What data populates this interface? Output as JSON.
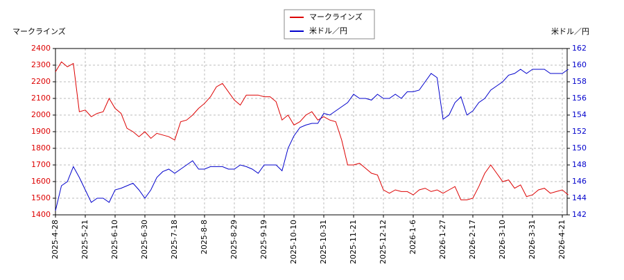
{
  "chart_data": {
    "type": "line",
    "ylabel": "マークラインズ",
    "y2label": "米ドル／円",
    "categories": [
      "2025-4-28",
      null,
      null,
      null,
      null,
      "2025-5-21",
      null,
      null,
      null,
      null,
      "2025-6-10",
      null,
      null,
      null,
      null,
      "2025-6-30",
      null,
      null,
      null,
      null,
      "2025-7-18",
      null,
      null,
      null,
      null,
      "2025-8-8",
      null,
      null,
      null,
      null,
      "2025-8-29",
      null,
      null,
      null,
      null,
      "2025-9-19",
      null,
      null,
      null,
      null,
      "2025-10-10",
      null,
      null,
      null,
      null,
      "2025-10-31",
      null,
      null,
      null,
      null,
      "2025-11-21",
      null,
      null,
      null,
      null,
      "2025-12-12",
      null,
      null,
      null,
      null,
      "2026-1-6",
      null,
      null,
      null,
      null,
      "2026-1-27",
      null,
      null,
      null,
      null,
      "2026-2-17",
      null,
      null,
      null,
      null,
      "2026-3-10",
      null,
      null,
      null,
      null,
      "2026-3-31",
      null,
      null,
      null,
      null,
      "2026-4-21",
      null
    ],
    "series": [
      {
        "name": "マークラインズ",
        "color": "#dd0000",
        "axis": "y",
        "values": [
          2260,
          2320,
          2290,
          2310,
          2020,
          2030,
          1990,
          2010,
          2020,
          2100,
          2040,
          2010,
          1920,
          1900,
          1870,
          1900,
          1860,
          1890,
          1880,
          1870,
          1850,
          1960,
          1970,
          2000,
          2040,
          2070,
          2110,
          2170,
          2190,
          2140,
          2090,
          2060,
          2120,
          2120,
          2120,
          2110,
          2110,
          2080,
          1970,
          2000,
          1940,
          1960,
          2000,
          2020,
          1970,
          1990,
          1970,
          1960,
          1850,
          1700,
          1700,
          1710,
          1680,
          1650,
          1640,
          1550,
          1530,
          1550,
          1540,
          1540,
          1520,
          1550,
          1560,
          1540,
          1550,
          1530,
          1550,
          1570,
          1490,
          1490,
          1500,
          1570,
          1650,
          1700,
          1650,
          1600,
          1610,
          1560,
          1580,
          1510,
          1520,
          1550,
          1560,
          1530,
          1540,
          1550,
          1520
        ]
      },
      {
        "name": "米ドル／円",
        "color": "#0000cc",
        "axis": "y2",
        "values": [
          142.5,
          145.5,
          146,
          147.8,
          146.5,
          145,
          143.5,
          144,
          144,
          143.5,
          145,
          145.2,
          145.5,
          145.8,
          145,
          144,
          145,
          146.5,
          147.2,
          147.5,
          147,
          147.5,
          148,
          148.5,
          147.5,
          147.5,
          147.8,
          147.8,
          147.8,
          147.5,
          147.5,
          148,
          147.8,
          147.5,
          147,
          148,
          148,
          148,
          147.3,
          150,
          151.5,
          152.5,
          152.8,
          153,
          153,
          154.2,
          154,
          154.5,
          155,
          155.5,
          156.5,
          156,
          156,
          155.8,
          156.5,
          156,
          156,
          156.5,
          156,
          156.8,
          156.8,
          157,
          158,
          159,
          158.5,
          153.5,
          154,
          155.5,
          156.2,
          154,
          154.5,
          155.5,
          156,
          157,
          157.5,
          158,
          158.8,
          159,
          159.5,
          159,
          159.5,
          159.5,
          159.5,
          159,
          159,
          159,
          159.5
        ]
      }
    ],
    "ylim": [
      1400,
      2400
    ],
    "yticks": [
      1400,
      1500,
      1600,
      1700,
      1800,
      1900,
      2000,
      2100,
      2200,
      2300,
      2400
    ],
    "ytick_color": "#dd0000",
    "y2lim": [
      142,
      162
    ],
    "y2ticks": [
      142,
      144,
      146,
      148,
      150,
      152,
      154,
      156,
      158,
      160,
      162
    ],
    "y2tick_color": "#0000cc",
    "grid": true
  }
}
